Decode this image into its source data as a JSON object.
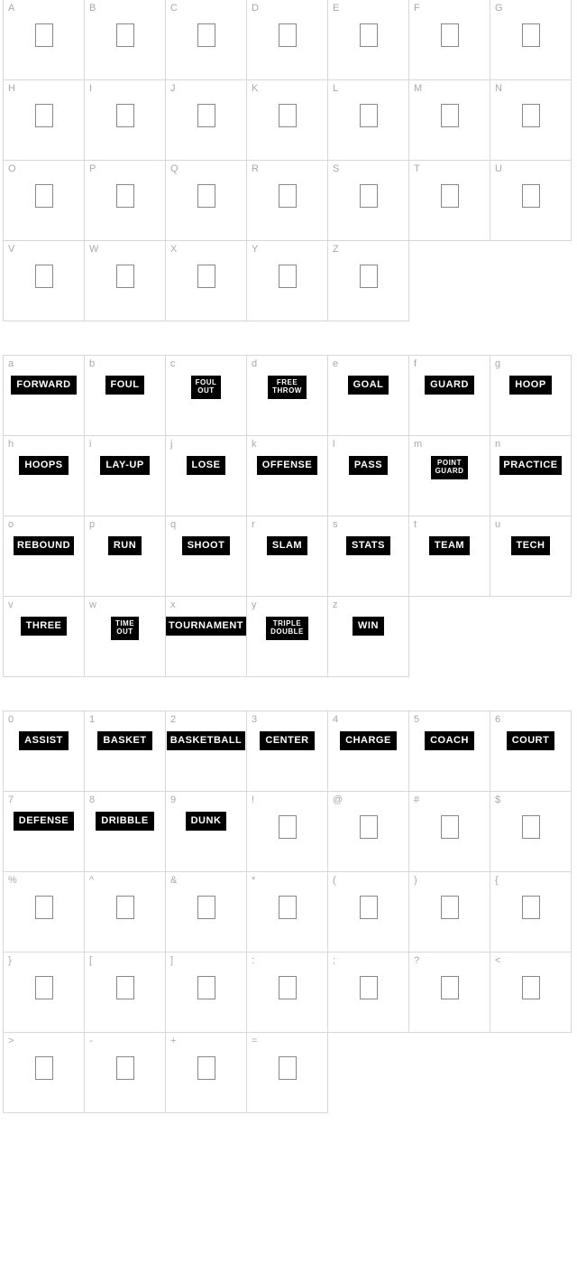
{
  "layout": {
    "cols": 7,
    "cell_size": 90,
    "border_color": "#d8d8d8",
    "label_color": "#a8a8a8",
    "chip_bg": "#000000",
    "chip_fg": "#ffffff",
    "background": "#ffffff"
  },
  "sections": [
    {
      "name": "uppercase",
      "cells": [
        {
          "label": "A",
          "glyph": null
        },
        {
          "label": "B",
          "glyph": null
        },
        {
          "label": "C",
          "glyph": null
        },
        {
          "label": "D",
          "glyph": null
        },
        {
          "label": "E",
          "glyph": null
        },
        {
          "label": "F",
          "glyph": null
        },
        {
          "label": "G",
          "glyph": null
        },
        {
          "label": "H",
          "glyph": null
        },
        {
          "label": "I",
          "glyph": null
        },
        {
          "label": "J",
          "glyph": null
        },
        {
          "label": "K",
          "glyph": null
        },
        {
          "label": "L",
          "glyph": null
        },
        {
          "label": "M",
          "glyph": null
        },
        {
          "label": "N",
          "glyph": null
        },
        {
          "label": "O",
          "glyph": null
        },
        {
          "label": "P",
          "glyph": null
        },
        {
          "label": "Q",
          "glyph": null
        },
        {
          "label": "R",
          "glyph": null
        },
        {
          "label": "S",
          "glyph": null
        },
        {
          "label": "T",
          "glyph": null
        },
        {
          "label": "U",
          "glyph": null
        },
        {
          "label": "V",
          "glyph": null
        },
        {
          "label": "W",
          "glyph": null
        },
        {
          "label": "X",
          "glyph": null
        },
        {
          "label": "Y",
          "glyph": null
        },
        {
          "label": "Z",
          "glyph": null
        }
      ]
    },
    {
      "name": "lowercase",
      "cells": [
        {
          "label": "a",
          "glyph": "FORWARD"
        },
        {
          "label": "b",
          "glyph": "FOUL"
        },
        {
          "label": "c",
          "glyph": "FOUL\nOUT",
          "small": true
        },
        {
          "label": "d",
          "glyph": "FREE\nTHROW",
          "small": true
        },
        {
          "label": "e",
          "glyph": "GOAL"
        },
        {
          "label": "f",
          "glyph": "GUARD"
        },
        {
          "label": "g",
          "glyph": "HOOP"
        },
        {
          "label": "h",
          "glyph": "HOOPS"
        },
        {
          "label": "i",
          "glyph": "LAY-UP"
        },
        {
          "label": "j",
          "glyph": "LOSE"
        },
        {
          "label": "k",
          "glyph": "OFFENSE"
        },
        {
          "label": "l",
          "glyph": "PASS"
        },
        {
          "label": "m",
          "glyph": "POINT\nGUARD",
          "small": true
        },
        {
          "label": "n",
          "glyph": "PRACTICE",
          "wide": true
        },
        {
          "label": "o",
          "glyph": "REBOUND",
          "wide": true
        },
        {
          "label": "p",
          "glyph": "RUN"
        },
        {
          "label": "q",
          "glyph": "SHOOT"
        },
        {
          "label": "r",
          "glyph": "SLAM"
        },
        {
          "label": "s",
          "glyph": "STATS"
        },
        {
          "label": "t",
          "glyph": "TEAM"
        },
        {
          "label": "u",
          "glyph": "TECH"
        },
        {
          "label": "v",
          "glyph": "THREE"
        },
        {
          "label": "w",
          "glyph": "TIME\nOUT",
          "small": true
        },
        {
          "label": "x",
          "glyph": "TOURNAMENT",
          "wide": true
        },
        {
          "label": "y",
          "glyph": "TRIPLE\nDOUBLE",
          "small": true
        },
        {
          "label": "z",
          "glyph": "WIN"
        }
      ]
    },
    {
      "name": "digits-symbols",
      "cells": [
        {
          "label": "0",
          "glyph": "ASSIST"
        },
        {
          "label": "1",
          "glyph": "BASKET"
        },
        {
          "label": "2",
          "glyph": "BASKETBALL",
          "wide": true
        },
        {
          "label": "3",
          "glyph": "CENTER"
        },
        {
          "label": "4",
          "glyph": "CHARGE"
        },
        {
          "label": "5",
          "glyph": "COACH"
        },
        {
          "label": "6",
          "glyph": "COURT"
        },
        {
          "label": "7",
          "glyph": "DEFENSE"
        },
        {
          "label": "8",
          "glyph": "DRIBBLE"
        },
        {
          "label": "9",
          "glyph": "DUNK"
        },
        {
          "label": "!",
          "glyph": null
        },
        {
          "label": "@",
          "glyph": null
        },
        {
          "label": "#",
          "glyph": null
        },
        {
          "label": "$",
          "glyph": null
        },
        {
          "label": "%",
          "glyph": null
        },
        {
          "label": "^",
          "glyph": null
        },
        {
          "label": "&",
          "glyph": null
        },
        {
          "label": "*",
          "glyph": null
        },
        {
          "label": "(",
          "glyph": null
        },
        {
          "label": ")",
          "glyph": null
        },
        {
          "label": "{",
          "glyph": null
        },
        {
          "label": "}",
          "glyph": null
        },
        {
          "label": "[",
          "glyph": null
        },
        {
          "label": "]",
          "glyph": null
        },
        {
          "label": ":",
          "glyph": null
        },
        {
          "label": ";",
          "glyph": null
        },
        {
          "label": "?",
          "glyph": null
        },
        {
          "label": "<",
          "glyph": null
        },
        {
          "label": ">",
          "glyph": null
        },
        {
          "label": "-",
          "glyph": null
        },
        {
          "label": "+",
          "glyph": null
        },
        {
          "label": "=",
          "glyph": null
        }
      ]
    }
  ]
}
